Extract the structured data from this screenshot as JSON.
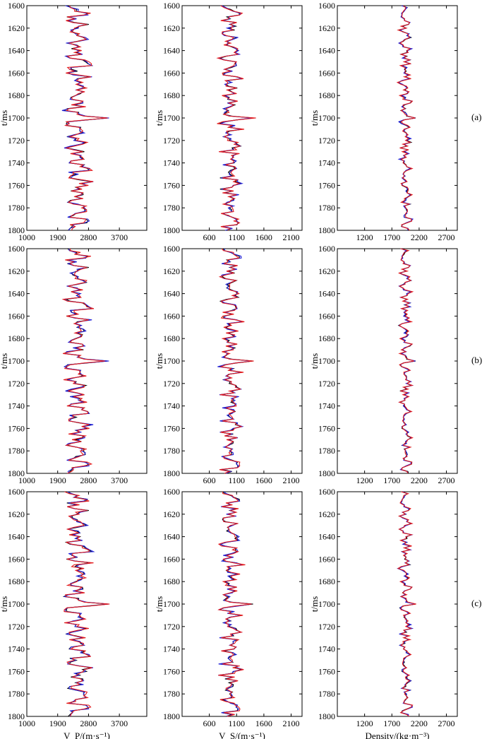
{
  "figure": {
    "row_labels": [
      "(a)",
      "(b)",
      "(c)"
    ],
    "ylabel": "t/ms",
    "xlabels": [
      "V_P/(m·s⁻¹)",
      "V_S/(m·s⁻¹)",
      "Density/(kg·m⁻³)"
    ],
    "series_colors": {
      "black": "#000000",
      "blue": "#1f1fd6",
      "red": "#e31a1c"
    }
  },
  "chart_data": [
    {
      "type": "line",
      "panel": "Vp",
      "ylim": [
        1800,
        1600
      ],
      "xlim": [
        1000,
        4500
      ],
      "xticks": [
        1000,
        1900,
        2800,
        3700
      ],
      "yticks": [
        1600,
        1620,
        1640,
        1660,
        1680,
        1700,
        1720,
        1740,
        1760,
        1780,
        1800
      ],
      "base": 2500,
      "amp": 380,
      "seed": 11
    },
    {
      "type": "line",
      "panel": "Vs",
      "ylim": [
        1800,
        1600
      ],
      "xlim": [
        100,
        2300
      ],
      "xticks": [
        600,
        1100,
        1600,
        2100
      ],
      "yticks": [
        1600,
        1620,
        1640,
        1660,
        1680,
        1700,
        1720,
        1740,
        1760,
        1780,
        1800
      ],
      "base": 1000,
      "amp": 200,
      "seed": 23
    },
    {
      "type": "line",
      "panel": "Density",
      "ylim": [
        1800,
        1600
      ],
      "xlim": [
        700,
        2900
      ],
      "xticks": [
        1200,
        1700,
        2200,
        2700
      ],
      "yticks": [
        1600,
        1620,
        1640,
        1660,
        1680,
        1700,
        1720,
        1740,
        1760,
        1780,
        1800
      ],
      "base": 1950,
      "amp": 110,
      "seed": 37
    }
  ]
}
